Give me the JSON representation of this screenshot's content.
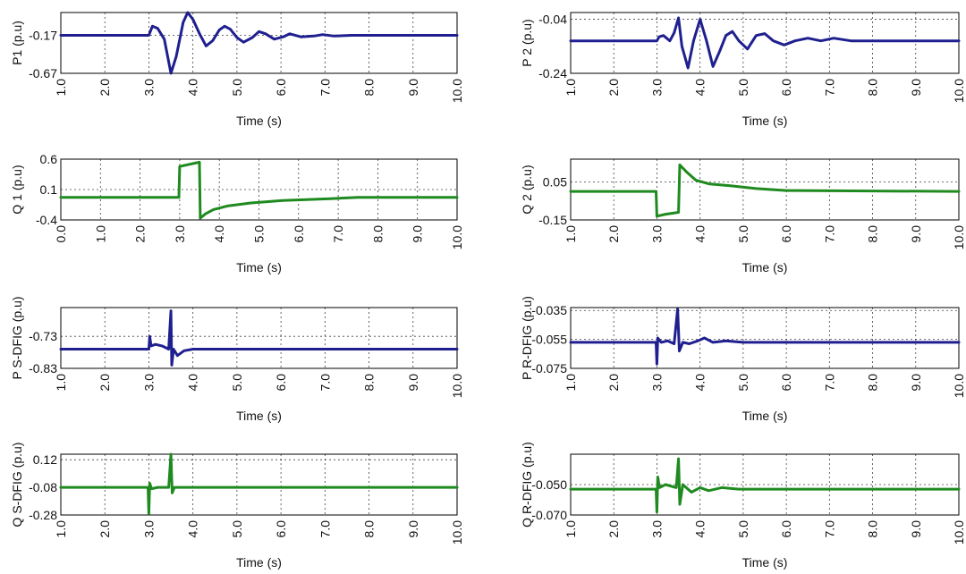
{
  "colors": {
    "blue": "#1f1f8f",
    "green": "#1f8a1f"
  },
  "chart_data": [
    {
      "type": "line",
      "id": "p1",
      "ylabel_name": "P1",
      "ylabel_unit": "(p.u)",
      "xlabel": "Time",
      "xunit": "(s)",
      "xlim": [
        1,
        10
      ],
      "xticks": [
        "1.0",
        "2.0",
        "3.0",
        "4.0",
        "5.0",
        "6.0",
        "7.0",
        "8.0",
        "9.0",
        "10.0"
      ],
      "ylim": [
        -0.67,
        0.13
      ],
      "yticks": [
        -0.17,
        -0.67
      ],
      "ytick_labels": [
        "-0.17",
        "-0.67"
      ],
      "color": "blue",
      "series": [
        {
          "values": [
            [
              1,
              -0.17
            ],
            [
              3.0,
              -0.17
            ],
            [
              3.08,
              -0.05
            ],
            [
              3.2,
              -0.08
            ],
            [
              3.35,
              -0.22
            ],
            [
              3.5,
              -0.67
            ],
            [
              3.62,
              -0.45
            ],
            [
              3.78,
              0.0
            ],
            [
              3.88,
              0.13
            ],
            [
              4.0,
              0.04
            ],
            [
              4.15,
              -0.15
            ],
            [
              4.3,
              -0.31
            ],
            [
              4.45,
              -0.24
            ],
            [
              4.6,
              -0.1
            ],
            [
              4.72,
              -0.05
            ],
            [
              4.85,
              -0.09
            ],
            [
              5.0,
              -0.2
            ],
            [
              5.15,
              -0.26
            ],
            [
              5.35,
              -0.2
            ],
            [
              5.5,
              -0.12
            ],
            [
              5.65,
              -0.15
            ],
            [
              5.85,
              -0.22
            ],
            [
              6.05,
              -0.19
            ],
            [
              6.2,
              -0.15
            ],
            [
              6.45,
              -0.19
            ],
            [
              6.75,
              -0.18
            ],
            [
              6.95,
              -0.16
            ],
            [
              7.2,
              -0.18
            ],
            [
              7.6,
              -0.17
            ],
            [
              10,
              -0.17
            ]
          ]
        }
      ]
    },
    {
      "type": "line",
      "id": "p2",
      "ylabel_name": "P 2",
      "ylabel_unit": "(p.u)",
      "xlabel": "Time",
      "xunit": "(s)",
      "xlim": [
        1,
        10
      ],
      "xticks": [
        "1.0",
        "2.0",
        "3.0",
        "4.0",
        "5.0",
        "6.0",
        "7.0",
        "8.0",
        "9.0",
        "10.0"
      ],
      "ylim": [
        -0.24,
        -0.015
      ],
      "yticks": [
        -0.04,
        -0.24
      ],
      "ytick_labels": [
        "-0.04",
        "-0.24"
      ],
      "color": "blue",
      "series": [
        {
          "values": [
            [
              1,
              -0.12
            ],
            [
              3.0,
              -0.12
            ],
            [
              3.05,
              -0.105
            ],
            [
              3.15,
              -0.1
            ],
            [
              3.3,
              -0.12
            ],
            [
              3.4,
              -0.09
            ],
            [
              3.5,
              -0.035
            ],
            [
              3.58,
              -0.14
            ],
            [
              3.72,
              -0.22
            ],
            [
              3.85,
              -0.12
            ],
            [
              4.0,
              -0.04
            ],
            [
              4.15,
              -0.12
            ],
            [
              4.3,
              -0.215
            ],
            [
              4.45,
              -0.16
            ],
            [
              4.6,
              -0.1
            ],
            [
              4.75,
              -0.085
            ],
            [
              4.9,
              -0.12
            ],
            [
              5.1,
              -0.15
            ],
            [
              5.3,
              -0.1
            ],
            [
              5.5,
              -0.093
            ],
            [
              5.7,
              -0.12
            ],
            [
              5.95,
              -0.135
            ],
            [
              6.2,
              -0.12
            ],
            [
              6.5,
              -0.11
            ],
            [
              6.8,
              -0.12
            ],
            [
              7.1,
              -0.11
            ],
            [
              7.5,
              -0.12
            ],
            [
              10,
              -0.12
            ]
          ]
        }
      ]
    },
    {
      "type": "line",
      "id": "q1",
      "ylabel_name": "Q 1",
      "ylabel_unit": "(p.u)",
      "xlabel": "Time",
      "xunit": "(s)",
      "xlim": [
        0,
        10
      ],
      "xticks": [
        "0.0",
        "1.0",
        "2.0",
        "3.0",
        "4.0",
        "5.0",
        "6.0",
        "7.0",
        "8.0",
        "9.0",
        "10.0"
      ],
      "ylim": [
        -0.4,
        0.6
      ],
      "yticks": [
        0.6,
        0.1,
        -0.4
      ],
      "ytick_labels": [
        "0.6",
        "0.1",
        "-0.4"
      ],
      "color": "green",
      "series": [
        {
          "values": [
            [
              0,
              -0.03
            ],
            [
              2.98,
              -0.03
            ],
            [
              3.0,
              0.48
            ],
            [
              3.5,
              0.55
            ],
            [
              3.52,
              -0.37
            ],
            [
              3.65,
              -0.3
            ],
            [
              3.85,
              -0.23
            ],
            [
              4.2,
              -0.17
            ],
            [
              4.8,
              -0.12
            ],
            [
              5.6,
              -0.08
            ],
            [
              6.8,
              -0.05
            ],
            [
              7.5,
              -0.03
            ],
            [
              10,
              -0.03
            ]
          ]
        }
      ]
    },
    {
      "type": "line",
      "id": "q2",
      "ylabel_name": "Q 2",
      "ylabel_unit": "(p.u)",
      "xlabel": "Time",
      "xunit": "(s)",
      "xlim": [
        1,
        10
      ],
      "xticks": [
        "1.0",
        "2.0",
        "3.0",
        "4.0",
        "5.0",
        "6.0",
        "7.0",
        "8.0",
        "9.0",
        "10.0"
      ],
      "ylim": [
        -0.15,
        0.17
      ],
      "yticks": [
        0.05,
        -0.15
      ],
      "ytick_labels": [
        "0.05",
        "-0.15"
      ],
      "color": "green",
      "series": [
        {
          "values": [
            [
              1,
              0.0
            ],
            [
              2.98,
              0.0
            ],
            [
              3.0,
              -0.13
            ],
            [
              3.2,
              -0.12
            ],
            [
              3.5,
              -0.11
            ],
            [
              3.53,
              0.14
            ],
            [
              3.7,
              0.1
            ],
            [
              3.9,
              0.06
            ],
            [
              4.2,
              0.04
            ],
            [
              4.7,
              0.03
            ],
            [
              5.3,
              0.015
            ],
            [
              6.0,
              0.005
            ],
            [
              10,
              0.0
            ]
          ]
        }
      ]
    },
    {
      "type": "line",
      "id": "p-s-dfig",
      "ylabel_name": "P S-DFIG",
      "ylabel_unit": "(p.u)",
      "xlabel": "Time",
      "xunit": "(s)",
      "xlim": [
        1,
        10
      ],
      "xticks": [
        "1.0",
        "2.0",
        "3.0",
        "4.0",
        "5.0",
        "6.0",
        "7.0",
        "8.0",
        "9.0",
        "10.0"
      ],
      "ylim": [
        -0.83,
        -0.64
      ],
      "yticks": [
        -0.73,
        -0.83
      ],
      "ytick_labels": [
        "-0.73",
        "-0.83"
      ],
      "color": "blue",
      "series": [
        {
          "values": [
            [
              1,
              -0.77
            ],
            [
              3.0,
              -0.77
            ],
            [
              3.02,
              -0.73
            ],
            [
              3.05,
              -0.76
            ],
            [
              3.15,
              -0.755
            ],
            [
              3.3,
              -0.76
            ],
            [
              3.45,
              -0.77
            ],
            [
              3.5,
              -0.65
            ],
            [
              3.52,
              -0.82
            ],
            [
              3.56,
              -0.77
            ],
            [
              3.65,
              -0.79
            ],
            [
              3.8,
              -0.775
            ],
            [
              4.0,
              -0.77
            ],
            [
              10,
              -0.77
            ]
          ]
        }
      ]
    },
    {
      "type": "line",
      "id": "p-r-dfig",
      "ylabel_name": "P R-DFIG",
      "ylabel_unit": "(p.u)",
      "xlabel": "Time",
      "xunit": "(s)",
      "xlim": [
        1,
        10
      ],
      "xticks": [
        "1.0",
        "2.0",
        "3.0",
        "4.0",
        "5.0",
        "6.0",
        "7.0",
        "8.0",
        "9.0",
        "10.0"
      ],
      "ylim": [
        -0.075,
        -0.033
      ],
      "yticks": [
        -0.035,
        -0.055,
        -0.075
      ],
      "ytick_labels": [
        "-0.035",
        "-0.055",
        "-0.075"
      ],
      "color": "blue",
      "series": [
        {
          "values": [
            [
              1,
              -0.057
            ],
            [
              2.98,
              -0.057
            ],
            [
              3.0,
              -0.072
            ],
            [
              3.02,
              -0.054
            ],
            [
              3.1,
              -0.057
            ],
            [
              3.25,
              -0.056
            ],
            [
              3.4,
              -0.058
            ],
            [
              3.48,
              -0.034
            ],
            [
              3.52,
              -0.063
            ],
            [
              3.6,
              -0.057
            ],
            [
              3.75,
              -0.058
            ],
            [
              3.95,
              -0.056
            ],
            [
              4.1,
              -0.054
            ],
            [
              4.3,
              -0.057
            ],
            [
              4.6,
              -0.056
            ],
            [
              5.0,
              -0.057
            ],
            [
              10,
              -0.057
            ]
          ]
        }
      ]
    },
    {
      "type": "line",
      "id": "q-s-dfig",
      "ylabel_name": "Q S-DFIG",
      "ylabel_unit": "(p.u)",
      "xlabel": "Time",
      "xunit": "(s)",
      "xlim": [
        1,
        10
      ],
      "xticks": [
        "1.0",
        "2.0",
        "3.0",
        "4.0",
        "5.0",
        "6.0",
        "7.0",
        "8.0",
        "9.0",
        "10.0"
      ],
      "ylim": [
        -0.28,
        0.16
      ],
      "yticks": [
        0.12,
        -0.08,
        -0.28
      ],
      "ytick_labels": [
        "0.12",
        "-0.08",
        "-0.28"
      ],
      "color": "green",
      "series": [
        {
          "values": [
            [
              1,
              -0.08
            ],
            [
              2.98,
              -0.08
            ],
            [
              3.0,
              -0.27
            ],
            [
              3.02,
              -0.05
            ],
            [
              3.06,
              -0.09
            ],
            [
              3.2,
              -0.08
            ],
            [
              3.45,
              -0.08
            ],
            [
              3.5,
              0.16
            ],
            [
              3.53,
              -0.12
            ],
            [
              3.58,
              -0.08
            ],
            [
              10,
              -0.08
            ]
          ]
        }
      ]
    },
    {
      "type": "line",
      "id": "q-r-dfig",
      "ylabel_name": "Q R-DFIG",
      "ylabel_unit": "(p.u)",
      "xlabel": "Time",
      "xunit": "(s)",
      "xlim": [
        1,
        10
      ],
      "xticks": [
        "1.0",
        "2.0",
        "3.0",
        "4.0",
        "5.0",
        "6.0",
        "7.0",
        "8.0",
        "9.0",
        "10.0"
      ],
      "ylim": [
        -0.07,
        -0.03
      ],
      "yticks": [
        -0.05,
        -0.07
      ],
      "ytick_labels": [
        "-0.050",
        "-0.070"
      ],
      "color": "green",
      "series": [
        {
          "values": [
            [
              1,
              -0.053
            ],
            [
              2.98,
              -0.053
            ],
            [
              3.0,
              -0.068
            ],
            [
              3.02,
              -0.045
            ],
            [
              3.06,
              -0.052
            ],
            [
              3.2,
              -0.05
            ],
            [
              3.45,
              -0.052
            ],
            [
              3.5,
              -0.033
            ],
            [
              3.53,
              -0.063
            ],
            [
              3.6,
              -0.05
            ],
            [
              3.8,
              -0.055
            ],
            [
              4.0,
              -0.052
            ],
            [
              4.2,
              -0.054
            ],
            [
              4.5,
              -0.052
            ],
            [
              4.9,
              -0.053
            ],
            [
              10,
              -0.053
            ]
          ]
        }
      ]
    }
  ]
}
